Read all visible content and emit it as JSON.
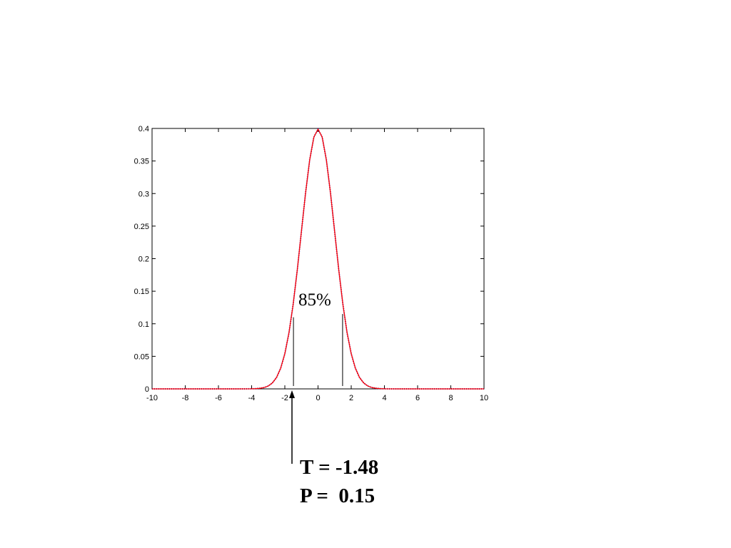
{
  "chart_data": {
    "type": "line",
    "x": [
      -10,
      -9,
      -8,
      -7,
      -6,
      -5,
      -4,
      -3.75,
      -3.5,
      -3.25,
      -3,
      -2.75,
      -2.5,
      -2.25,
      -2,
      -1.75,
      -1.5,
      -1.25,
      -1,
      -0.75,
      -0.5,
      -0.25,
      0,
      0.25,
      0.5,
      0.75,
      1,
      1.25,
      1.5,
      1.75,
      2,
      2.25,
      2.5,
      2.75,
      3,
      3.25,
      3.5,
      3.75,
      4,
      5,
      6,
      7,
      8,
      9,
      10
    ],
    "series": [
      {
        "color": "#ff0000",
        "values": [
          0,
          0,
          0,
          0,
          0,
          0,
          0.0001,
          0.0004,
          0.0009,
          0.002,
          0.0044,
          0.0091,
          0.0175,
          0.0317,
          0.054,
          0.0863,
          0.1295,
          0.1826,
          0.242,
          0.3011,
          0.3521,
          0.3867,
          0.3989,
          0.3867,
          0.3521,
          0.3011,
          0.242,
          0.1826,
          0.1295,
          0.0863,
          0.054,
          0.0317,
          0.0175,
          0.0091,
          0.0044,
          0.002,
          0.0009,
          0.0004,
          0.0001,
          0,
          0,
          0,
          0,
          0,
          0
        ]
      }
    ],
    "xlim": [
      -10,
      10
    ],
    "xticks": [
      -10,
      -8,
      -6,
      -4,
      -2,
      0,
      2,
      4,
      6,
      8,
      10
    ],
    "ylim": [
      0,
      0.4
    ],
    "yticks": [
      0,
      0.05,
      0.1,
      0.15,
      0.2,
      0.25,
      0.3,
      0.35,
      0.4
    ],
    "reference_lines": [
      {
        "x": -1.48,
        "y": 0.11
      },
      {
        "x": 1.48,
        "y": 0.115
      }
    ],
    "annotations": [
      "85%",
      "T = -1.48",
      "P =  0.15"
    ]
  }
}
